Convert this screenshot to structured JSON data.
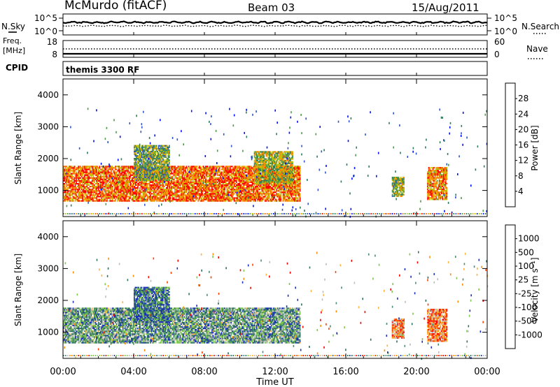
{
  "header": {
    "station": "McMurdo (fitACF)",
    "beam": "Beam 03",
    "date": "15/Aug/2011"
  },
  "noise_panel": {
    "left_label": "N.Sky",
    "right_label": "N.Search",
    "left_ticks": [
      "10^5",
      "10^0"
    ],
    "right_ticks": [
      "10^5",
      "10^0"
    ]
  },
  "freq_panel": {
    "left_label_1": "Freq.",
    "left_label_2": "[MHz]",
    "left_ticks": [
      "18",
      "8"
    ],
    "right_label": "Nave",
    "right_ticks": [
      "60",
      "0"
    ],
    "freq_value_mhz": 8.1,
    "nave_value": 30
  },
  "cpid": {
    "label": "CPID",
    "value": "themis 3300 RF"
  },
  "chart_data": [
    {
      "type": "heatmap",
      "quantity": "Power",
      "ylabel": "Slant Range [km]",
      "ylim": [
        180,
        4500
      ],
      "yticks": [
        1000,
        2000,
        3000,
        4000
      ],
      "xlabel": "Time UT",
      "xlim": [
        0,
        24
      ],
      "xticks": [
        "00:00",
        "04:00",
        "08:00",
        "12:00",
        "16:00",
        "20:00",
        "00:00"
      ],
      "colorbar_label": "Power [dB]",
      "colorbar_ticks": [
        "4",
        "8",
        "12",
        "16",
        "20",
        "24",
        "28"
      ],
      "colors": [
        "#0010ff",
        "#2d55c8",
        "#2c7d58",
        "#4f9a48",
        "#b8c400",
        "#f0a000",
        "#ff6a00",
        "#ff0000"
      ],
      "regions": [
        {
          "t0": 0.0,
          "t1": 13.4,
          "r0": 650,
          "r1": 1750,
          "v": 0.8
        },
        {
          "t0": 4.0,
          "t1": 6.0,
          "r0": 1300,
          "r1": 2400,
          "v": 0.45
        },
        {
          "t0": 10.8,
          "t1": 13.0,
          "r0": 1200,
          "r1": 2200,
          "v": 0.55
        },
        {
          "t0": 18.6,
          "t1": 19.3,
          "r0": 800,
          "r1": 1400,
          "v": 0.5
        },
        {
          "t0": 20.6,
          "t1": 21.7,
          "r0": 700,
          "r1": 1700,
          "v": 0.75
        }
      ]
    },
    {
      "type": "heatmap",
      "quantity": "Velocity",
      "ylabel": "Slant Range [km]",
      "ylim": [
        180,
        4500
      ],
      "yticks": [
        1000,
        2000,
        3000,
        4000
      ],
      "xlabel": "Time UT",
      "xlim": [
        0,
        24
      ],
      "xticks": [
        "00:00",
        "04:00",
        "08:00",
        "12:00",
        "16:00",
        "20:00",
        "00:00"
      ],
      "colorbar_label": "Velocity [m s⁻¹]",
      "colorbar_ticks": [
        "1000",
        "500",
        "100",
        "25",
        "-25",
        "-100",
        "-500",
        "-1000"
      ],
      "colors": [
        "#1a2fb8",
        "#2f7060",
        "#4a8d6e",
        "#7dc84a",
        "#bdbdbd",
        "#ffb23c",
        "#ff8c00",
        "#ff4000",
        "#ff0000"
      ],
      "regions": [
        {
          "t0": 0.0,
          "t1": 13.4,
          "r0": 650,
          "r1": 1750,
          "v": 0.3
        },
        {
          "t0": 4.0,
          "t1": 6.0,
          "r0": 1300,
          "r1": 2400,
          "v": 0.2
        },
        {
          "t0": 18.6,
          "t1": 19.3,
          "r0": 800,
          "r1": 1400,
          "v": 0.7
        },
        {
          "t0": 20.6,
          "t1": 21.7,
          "r0": 700,
          "r1": 1700,
          "v": 0.72
        }
      ]
    }
  ]
}
